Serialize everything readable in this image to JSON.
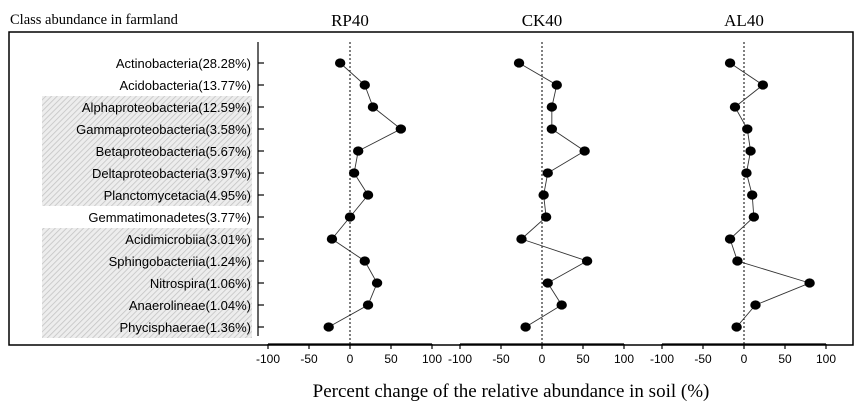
{
  "header_label": "Class abundance in farmland",
  "xlabel": "Percent change of the relative abundance in soil (%)",
  "chart_data": {
    "type": "scatter",
    "categories": [
      "Actinobacteria(28.28%)",
      "Acidobacteria(13.77%)",
      "Alphaproteobacteria(12.59%)",
      "Gammaproteobacteria(3.58%)",
      "Betaproteobacteria(5.67%)",
      "Deltaproteobacteria(3.97%)",
      "Planctomycetacia(4.95%)",
      "Gemmatimonadetes(3.77%)",
      "Acidimicrobiia(3.01%)",
      "Sphingobacteriia(1.24%)",
      "Nitrospira(1.06%)",
      "Anaerolineae(1.04%)",
      "Phycisphaerae(1.36%)"
    ],
    "shaded_groups": [
      [
        2,
        6
      ],
      [
        8,
        12
      ]
    ],
    "xlim": [
      -100,
      100
    ],
    "xticks": [
      -100,
      -50,
      0,
      50,
      100
    ],
    "reference_line_x": 0,
    "panels": [
      {
        "title": "RP40",
        "values": [
          -12,
          18,
          28,
          62,
          10,
          5,
          22,
          0,
          -22,
          18,
          33,
          22,
          -26
        ]
      },
      {
        "title": "CK40",
        "values": [
          -28,
          18,
          12,
          12,
          52,
          7,
          2,
          5,
          -25,
          55,
          7,
          24,
          -20
        ]
      },
      {
        "title": "AL40",
        "values": [
          -17,
          23,
          -11,
          4,
          8,
          3,
          10,
          12,
          -17,
          -8,
          80,
          14,
          -9
        ]
      }
    ]
  }
}
